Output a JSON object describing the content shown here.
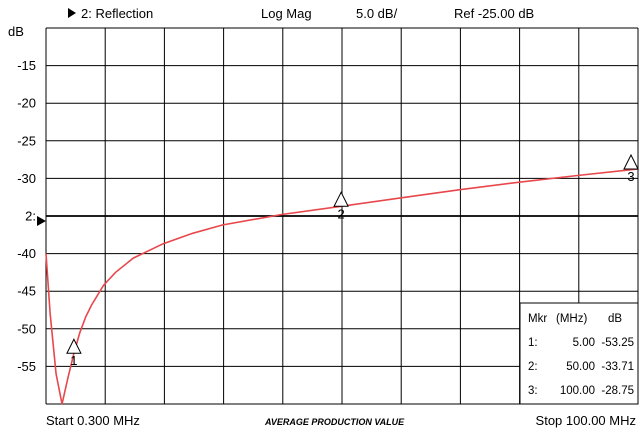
{
  "header": {
    "trace_label": "2: Reflection",
    "format": "Log Mag",
    "scale": "5.0 dB/",
    "reference": "Ref -25.00 dB",
    "unit": "dB"
  },
  "footer": {
    "start": "Start 0.300 MHz",
    "note": "AVERAGE PRODUCTION VALUE",
    "stop": "Stop 100.00 MHz"
  },
  "reference_marker": {
    "label": "2:"
  },
  "marker_table": {
    "headers": [
      "Mkr",
      "(MHz)",
      "dB"
    ],
    "rows": [
      {
        "id": "1:",
        "freq": "5.00",
        "value": "-53.25"
      },
      {
        "id": "2:",
        "freq": "50.00",
        "value": "-33.71"
      },
      {
        "id": "3:",
        "freq": "100.00",
        "value": "-28.75"
      }
    ]
  },
  "chart_data": {
    "type": "line",
    "title": "2: Reflection",
    "xlabel": "",
    "ylabel": "dB",
    "xlim": [
      0.3,
      100
    ],
    "ylim": [
      -60,
      -10
    ],
    "y_ticks": [
      "-15",
      "-20",
      "-25",
      "-30",
      "2:",
      "-40",
      "-45",
      "-50",
      "-55"
    ],
    "grid": true,
    "colors": {
      "trace": "#e8474b",
      "grid": "#000000"
    },
    "series": [
      {
        "x": [
          0.3,
          1,
          2,
          3,
          4,
          5,
          6,
          7,
          8,
          10,
          12,
          15,
          20,
          25,
          30,
          40,
          50,
          60,
          70,
          80,
          90,
          100
        ],
        "values": [
          -40.0,
          -48.0,
          -56.0,
          -60.0,
          -56.5,
          -53.25,
          -50.5,
          -48.4,
          -46.8,
          -44.2,
          -42.5,
          -40.6,
          -38.7,
          -37.3,
          -36.2,
          -34.8,
          -33.71,
          -32.6,
          -31.5,
          -30.5,
          -29.6,
          -28.75
        ]
      }
    ],
    "markers": [
      {
        "label": "1",
        "x": 5,
        "y": -53.25
      },
      {
        "label": "2",
        "x": 50,
        "y": -33.71
      },
      {
        "label": "3",
        "x": 100,
        "y": -28.75
      }
    ]
  }
}
